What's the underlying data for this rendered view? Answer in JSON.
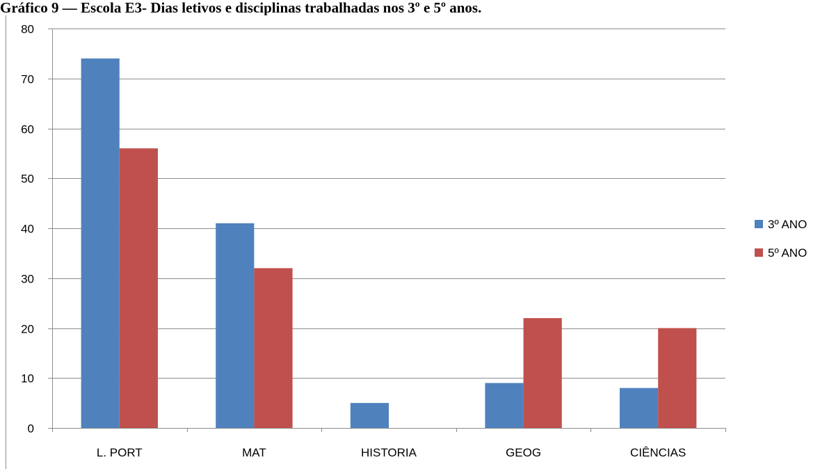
{
  "caption": "Gráfico 9 — Escola E3- Dias letivos e disciplinas trabalhadas nos 3º e 5º anos.",
  "chart_data": {
    "type": "bar",
    "categories": [
      "L. PORT",
      "MAT",
      "HISTORIA",
      "GEOG",
      "CIÊNCIAS"
    ],
    "series": [
      {
        "name": "3º ANO",
        "color": "#4f81bd",
        "values": [
          74,
          41,
          5,
          9,
          8
        ]
      },
      {
        "name": "5º ANO",
        "color": "#c0504d",
        "values": [
          56,
          32,
          0,
          22,
          20
        ]
      }
    ],
    "ylim": [
      0,
      80
    ],
    "yticks": [
      0,
      10,
      20,
      30,
      40,
      50,
      60,
      70,
      80
    ],
    "grid": true,
    "legend": "right",
    "title": "",
    "xlabel": "",
    "ylabel": ""
  }
}
